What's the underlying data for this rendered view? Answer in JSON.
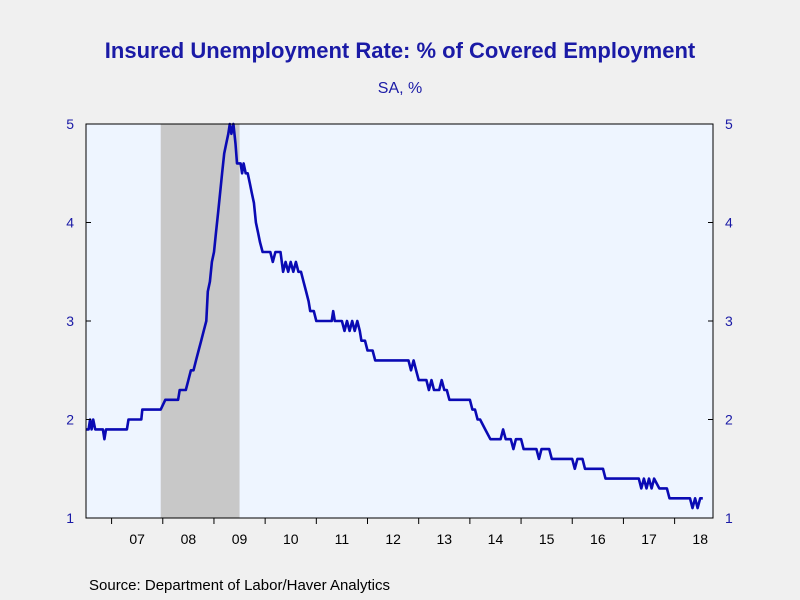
{
  "title": "Insured Unemployment Rate: % of Covered Employment",
  "subtitle": "SA, %",
  "source": "Source:  Department of Labor/Haver Analytics",
  "colors": {
    "line": "#0a0ab4",
    "plot_bg": "#eef5ff",
    "recession": "#c8c8c8",
    "axis_text": "#1a1aa6"
  },
  "chart_data": {
    "type": "line",
    "title": "Insured Unemployment Rate: % of Covered Employment",
    "subtitle": "SA, %",
    "xlabel": "",
    "ylabel": "",
    "xlim": [
      2006.5,
      2018.75
    ],
    "ylim": [
      1,
      5
    ],
    "yticks": [
      1,
      2,
      3,
      4,
      5
    ],
    "y_axis_sides": [
      "left",
      "right"
    ],
    "xtick_labels": [
      "07",
      "08",
      "09",
      "10",
      "11",
      "12",
      "13",
      "14",
      "15",
      "16",
      "17",
      "18"
    ],
    "xtick_years": [
      2007,
      2008,
      2009,
      2010,
      2011,
      2012,
      2013,
      2014,
      2015,
      2016,
      2017,
      2018
    ],
    "grid": false,
    "recession_shading": [
      [
        2007.96,
        2009.5
      ]
    ],
    "series": [
      {
        "points": [
          [
            2006.5,
            1.9
          ],
          [
            2006.55,
            1.9
          ],
          [
            2006.58,
            2.0
          ],
          [
            2006.61,
            1.9
          ],
          [
            2006.64,
            2.0
          ],
          [
            2006.68,
            1.9
          ],
          [
            2006.75,
            1.9
          ],
          [
            2006.83,
            1.9
          ],
          [
            2006.86,
            1.8
          ],
          [
            2006.89,
            1.9
          ],
          [
            2007.0,
            1.9
          ],
          [
            2007.2,
            1.9
          ],
          [
            2007.3,
            1.9
          ],
          [
            2007.33,
            2.0
          ],
          [
            2007.45,
            2.0
          ],
          [
            2007.5,
            2.0
          ],
          [
            2007.58,
            2.0
          ],
          [
            2007.6,
            2.1
          ],
          [
            2007.8,
            2.1
          ],
          [
            2007.96,
            2.1
          ],
          [
            2008.05,
            2.2
          ],
          [
            2008.2,
            2.2
          ],
          [
            2008.3,
            2.2
          ],
          [
            2008.33,
            2.3
          ],
          [
            2008.45,
            2.3
          ],
          [
            2008.5,
            2.4
          ],
          [
            2008.55,
            2.5
          ],
          [
            2008.6,
            2.5
          ],
          [
            2008.65,
            2.6
          ],
          [
            2008.7,
            2.7
          ],
          [
            2008.75,
            2.8
          ],
          [
            2008.8,
            2.9
          ],
          [
            2008.85,
            3.0
          ],
          [
            2008.88,
            3.3
          ],
          [
            2008.92,
            3.4
          ],
          [
            2008.96,
            3.6
          ],
          [
            2009.0,
            3.7
          ],
          [
            2009.04,
            3.9
          ],
          [
            2009.08,
            4.1
          ],
          [
            2009.12,
            4.3
          ],
          [
            2009.16,
            4.5
          ],
          [
            2009.2,
            4.7
          ],
          [
            2009.24,
            4.8
          ],
          [
            2009.28,
            4.9
          ],
          [
            2009.31,
            5.0
          ],
          [
            2009.34,
            4.9
          ],
          [
            2009.38,
            5.0
          ],
          [
            2009.42,
            4.8
          ],
          [
            2009.45,
            4.6
          ],
          [
            2009.52,
            4.6
          ],
          [
            2009.55,
            4.5
          ],
          [
            2009.58,
            4.6
          ],
          [
            2009.62,
            4.5
          ],
          [
            2009.66,
            4.5
          ],
          [
            2009.7,
            4.4
          ],
          [
            2009.74,
            4.3
          ],
          [
            2009.78,
            4.2
          ],
          [
            2009.82,
            4.0
          ],
          [
            2009.86,
            3.9
          ],
          [
            2009.9,
            3.8
          ],
          [
            2009.95,
            3.7
          ],
          [
            2010.1,
            3.7
          ],
          [
            2010.15,
            3.6
          ],
          [
            2010.2,
            3.7
          ],
          [
            2010.3,
            3.7
          ],
          [
            2010.35,
            3.5
          ],
          [
            2010.4,
            3.6
          ],
          [
            2010.45,
            3.5
          ],
          [
            2010.5,
            3.6
          ],
          [
            2010.55,
            3.5
          ],
          [
            2010.6,
            3.6
          ],
          [
            2010.65,
            3.5
          ],
          [
            2010.7,
            3.5
          ],
          [
            2010.75,
            3.4
          ],
          [
            2010.8,
            3.3
          ],
          [
            2010.85,
            3.2
          ],
          [
            2010.88,
            3.1
          ],
          [
            2010.95,
            3.1
          ],
          [
            2011.0,
            3.0
          ],
          [
            2011.3,
            3.0
          ],
          [
            2011.33,
            3.1
          ],
          [
            2011.36,
            3.0
          ],
          [
            2011.5,
            3.0
          ],
          [
            2011.55,
            2.9
          ],
          [
            2011.6,
            3.0
          ],
          [
            2011.65,
            2.9
          ],
          [
            2011.7,
            3.0
          ],
          [
            2011.75,
            2.9
          ],
          [
            2011.8,
            3.0
          ],
          [
            2011.85,
            2.9
          ],
          [
            2011.88,
            2.8
          ],
          [
            2011.95,
            2.8
          ],
          [
            2012.0,
            2.7
          ],
          [
            2012.1,
            2.7
          ],
          [
            2012.15,
            2.6
          ],
          [
            2012.8,
            2.6
          ],
          [
            2012.85,
            2.5
          ],
          [
            2012.9,
            2.6
          ],
          [
            2012.95,
            2.5
          ],
          [
            2013.0,
            2.4
          ],
          [
            2013.15,
            2.4
          ],
          [
            2013.2,
            2.3
          ],
          [
            2013.25,
            2.4
          ],
          [
            2013.3,
            2.3
          ],
          [
            2013.4,
            2.3
          ],
          [
            2013.45,
            2.4
          ],
          [
            2013.5,
            2.3
          ],
          [
            2013.55,
            2.3
          ],
          [
            2013.6,
            2.2
          ],
          [
            2013.7,
            2.2
          ],
          [
            2014.0,
            2.2
          ],
          [
            2014.05,
            2.1
          ],
          [
            2014.1,
            2.1
          ],
          [
            2014.15,
            2.0
          ],
          [
            2014.2,
            2.0
          ],
          [
            2014.3,
            1.9
          ],
          [
            2014.4,
            1.8
          ],
          [
            2014.6,
            1.8
          ],
          [
            2014.65,
            1.9
          ],
          [
            2014.7,
            1.8
          ],
          [
            2014.8,
            1.8
          ],
          [
            2014.85,
            1.7
          ],
          [
            2014.9,
            1.8
          ],
          [
            2015.0,
            1.8
          ],
          [
            2015.05,
            1.7
          ],
          [
            2015.3,
            1.7
          ],
          [
            2015.35,
            1.6
          ],
          [
            2015.4,
            1.7
          ],
          [
            2015.55,
            1.7
          ],
          [
            2015.6,
            1.6
          ],
          [
            2015.8,
            1.6
          ],
          [
            2016.0,
            1.6
          ],
          [
            2016.05,
            1.5
          ],
          [
            2016.1,
            1.6
          ],
          [
            2016.2,
            1.6
          ],
          [
            2016.25,
            1.5
          ],
          [
            2016.5,
            1.5
          ],
          [
            2016.6,
            1.5
          ],
          [
            2016.65,
            1.4
          ],
          [
            2016.75,
            1.4
          ],
          [
            2017.0,
            1.4
          ],
          [
            2017.3,
            1.4
          ],
          [
            2017.35,
            1.3
          ],
          [
            2017.4,
            1.4
          ],
          [
            2017.45,
            1.3
          ],
          [
            2017.5,
            1.4
          ],
          [
            2017.55,
            1.3
          ],
          [
            2017.6,
            1.4
          ],
          [
            2017.7,
            1.3
          ],
          [
            2017.85,
            1.3
          ],
          [
            2017.9,
            1.2
          ],
          [
            2018.0,
            1.2
          ],
          [
            2018.2,
            1.2
          ],
          [
            2018.3,
            1.2
          ],
          [
            2018.35,
            1.1
          ],
          [
            2018.4,
            1.2
          ],
          [
            2018.45,
            1.1
          ],
          [
            2018.5,
            1.2
          ],
          [
            2018.55,
            1.2
          ]
        ]
      }
    ]
  }
}
